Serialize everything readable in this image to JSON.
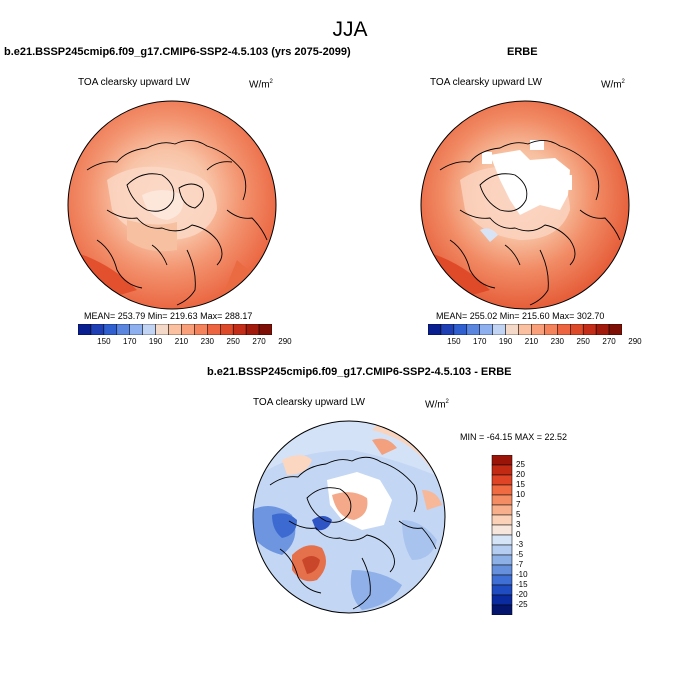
{
  "figure": {
    "season": "JJA",
    "left_panel": {
      "case_title": "b.e21.BSSP245cmip6.f09_g17.CMIP6-SSP2-4.5.103 (yrs 2075-2099)",
      "variable": "TOA clearsky upward LW",
      "units": "W/m",
      "units_exp": "2",
      "stats": "MEAN= 253.79  Min= 219.63  Max= 288.17"
    },
    "right_panel": {
      "case_title": "ERBE",
      "variable": "TOA clearsky upward LW",
      "units": "W/m",
      "units_exp": "2",
      "stats": "MEAN= 255.02  Min= 215.60  Max= 302.70"
    },
    "diff_panel": {
      "case_title": "b.e21.BSSP245cmip6.f09_g17.CMIP6-SSP2-4.5.103 - ERBE",
      "variable": "TOA clearsky upward LW",
      "units": "W/m",
      "units_exp": "2",
      "stats": "MIN = -64.15 MAX =  22.52"
    },
    "abs_colorbar": {
      "ticks": [
        "150",
        "170",
        "190",
        "210",
        "230",
        "250",
        "270",
        "290"
      ],
      "colors": [
        "#0a1f8f",
        "#1f3fb5",
        "#3060d0",
        "#5a86e0",
        "#8fb0ee",
        "#c2d4f4",
        "#f4d9c8",
        "#fbc0a0",
        "#f9a07a",
        "#f4825a",
        "#ec6540",
        "#dd4a2a",
        "#c42e18",
        "#a21a0c",
        "#7e0f06"
      ]
    },
    "diff_colorbar": {
      "labels": [
        "25",
        "20",
        "15",
        "10",
        "7",
        "5",
        "3",
        "0",
        "-3",
        "-5",
        "-7",
        "-10",
        "-15",
        "-20",
        "-25"
      ],
      "colors": [
        "#9a1508",
        "#c22a14",
        "#e04426",
        "#f06a42",
        "#f48d63",
        "#f8b08c",
        "#fbd2b8",
        "#f7e6dc",
        "#d6e4f7",
        "#b4cdf0",
        "#8db0e6",
        "#6690dc",
        "#3f6fd4",
        "#1f4cc0",
        "#0a2aa0",
        "#04156e"
      ]
    }
  }
}
